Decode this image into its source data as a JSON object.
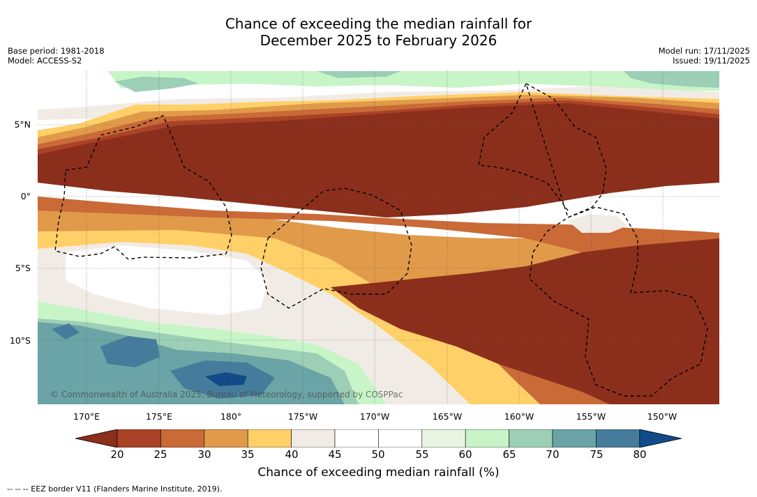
{
  "title": {
    "line1": "Chance of exceeding the median rainfall for",
    "line2": "December 2025 to February 2026"
  },
  "meta_left": {
    "base_period": "Base period: 1981-2018",
    "model": "Model: ACCESS-S2"
  },
  "meta_right": {
    "model_run": "Model run: 17/11/2025",
    "issued": "Issued: 19/11/2025"
  },
  "map": {
    "copyright": "© Commonwealth of Australia 2025, Bureau of Meteorology, supported by COSPPac",
    "lat_labels": [
      "5°N",
      "0°",
      "5°S",
      "10°S"
    ],
    "lon_labels": [
      "170°E",
      "175°E",
      "180°",
      "175°W",
      "170°W",
      "165°W",
      "160°W",
      "155°W",
      "150°W"
    ]
  },
  "colorbar": {
    "title": "Chance of exceeding median rainfall (%)",
    "ticks": [
      "20",
      "25",
      "30",
      "35",
      "40",
      "45",
      "50",
      "55",
      "60",
      "65",
      "70",
      "75",
      "80"
    ],
    "colors": {
      "below20": "#8b2f1c",
      "c20_25": "#a94226",
      "c25_30": "#c96a37",
      "c30_35": "#e09a4a",
      "c35_40": "#ffd068",
      "c40_45": "#f1ebe6",
      "c45_50": "#ffffff",
      "c50_55": "#ffffff",
      "c55_60": "#e9f4e3",
      "c60_65": "#c7f5c7",
      "c65_70": "#9ccfb5",
      "c70_75": "#6aa4a6",
      "c75_80": "#467c9b",
      "above80": "#124b88"
    }
  },
  "footnote": "-- -- -- EEZ border V11 (Flanders Marine Institute, 2019)."
}
